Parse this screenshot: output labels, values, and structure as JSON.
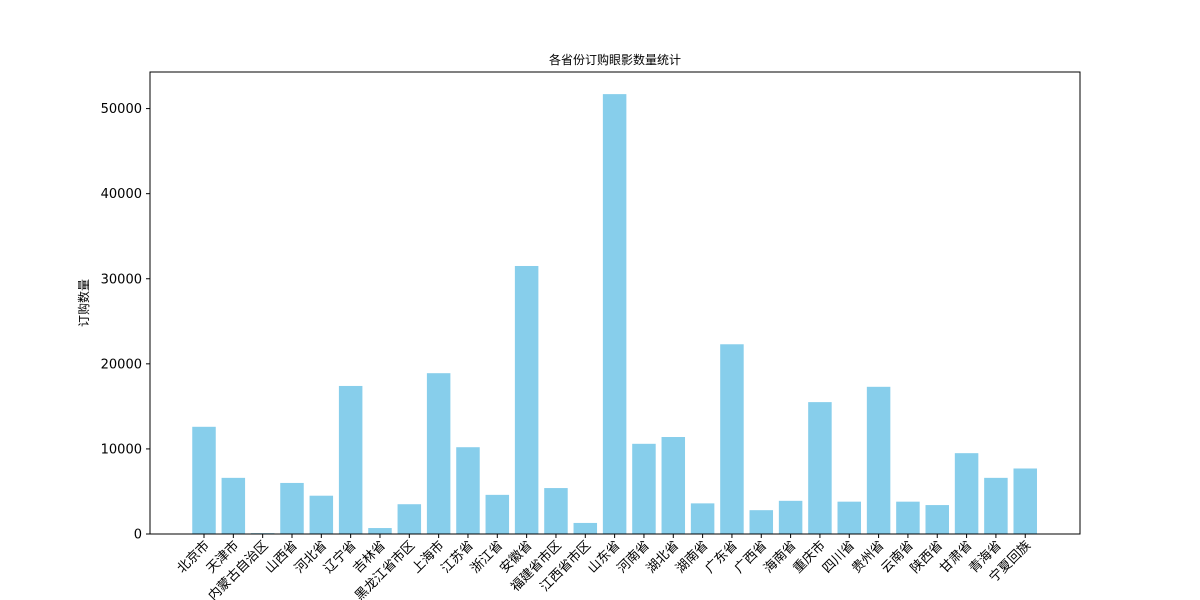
{
  "chart_data": {
    "type": "bar",
    "title": "各省份订购眼影数量统计",
    "xlabel": "",
    "ylabel": "订购数量",
    "ylim": [
      0,
      54300
    ],
    "yticks": [
      0,
      10000,
      20000,
      30000,
      40000,
      50000
    ],
    "ytick_labels": [
      "0",
      "10000",
      "20000",
      "30000",
      "40000",
      "50000"
    ],
    "bar_color": "#87CEEB",
    "grid": false,
    "legend": "none",
    "categories": [
      "北京市",
      "天津市",
      "内蒙古自治区",
      "山西省",
      "河北省",
      "辽宁省",
      "吉林省",
      "黑龙江省市区",
      "上海市",
      "江苏省",
      "浙江省",
      "安徽省",
      "福建省市区",
      "江西省市区",
      "山东省",
      "河南省",
      "湖北省",
      "湖南省",
      "广东省",
      "广西省",
      "海南省",
      "重庆市",
      "四川省",
      "贵州省",
      "云南省",
      "陕西省",
      "甘肃省",
      "青海省",
      "宁夏回族"
    ],
    "values": [
      12600,
      6600,
      100,
      6000,
      4500,
      17400,
      700,
      3500,
      18900,
      10200,
      4600,
      31500,
      5400,
      1300,
      51700,
      10600,
      11400,
      3600,
      22300,
      2800,
      3900,
      15500,
      3800,
      17300,
      3800,
      3400,
      9500,
      6600,
      7700
    ]
  }
}
